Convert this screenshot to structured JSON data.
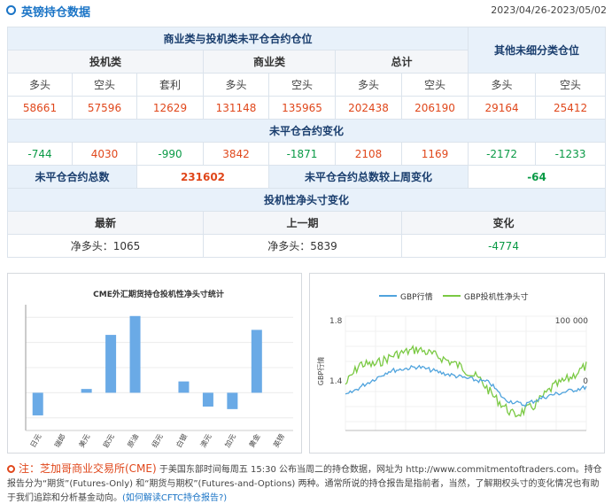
{
  "header": {
    "title": "英镑持仓数据",
    "date_range": "2023/04/26-2023/05/02"
  },
  "table": {
    "group_commercial": "商业类与投机类未平仓合约仓位",
    "group_other": "其他未细分类仓位",
    "sub_spec": "投机类",
    "sub_comm": "商业类",
    "sub_total": "总计",
    "cols": [
      "多头",
      "空头",
      "套利",
      "多头",
      "空头",
      "多头",
      "空头",
      "多头",
      "空头"
    ],
    "values": [
      "58661",
      "57596",
      "12629",
      "131148",
      "135965",
      "202438",
      "206190",
      "29164",
      "25412"
    ],
    "change_title": "未平仓合约变化",
    "changes": [
      "-744",
      "4030",
      "-990",
      "3842",
      "-1871",
      "2108",
      "1169",
      "-2172",
      "-1233"
    ],
    "oi_total_label": "未平仓合约总数",
    "oi_total": "231602",
    "oi_change_label": "未平仓合约总数较上周变化",
    "oi_change": "-64",
    "net_title": "投机性净头寸变化",
    "net_cols": [
      "最新",
      "上一期",
      "变化"
    ],
    "net_latest": "净多头：1065",
    "net_prev": "净多头：5839",
    "net_change": "-4774"
  },
  "chart_data": [
    {
      "type": "bar",
      "title": "CME外汇期货持仓投机性净头寸统计",
      "categories": [
        "日元",
        "瑞郎",
        "美元",
        "欧元",
        "原油",
        "纽元",
        "白银",
        "澳元",
        "加元",
        "黄金",
        "英镑"
      ],
      "values": [
        -0.9,
        0,
        0.15,
        2.3,
        3.05,
        0,
        0.45,
        -0.55,
        -0.65,
        2.5,
        0
      ],
      "ylim": [
        -1.5,
        3.5
      ],
      "bar_color": "#6aaae6"
    },
    {
      "type": "line",
      "series": [
        {
          "name": "GBP行情",
          "color": "#4fa3dd"
        },
        {
          "name": "GBP投机性净头寸",
          "color": "#7ac943"
        }
      ],
      "ylabel": "GBP行情",
      "left_ticks": [
        "1.8",
        "1.4"
      ],
      "right_ticks": [
        "100 000",
        "0"
      ]
    }
  ],
  "footer": {
    "lead": "注：芝加哥商业交易所(CME)",
    "text": "于美国东部时间每周五 15:30 公布当周二的持仓数据，网址为 http://www.commitmentoftraders.com。持仓报告分为“期货”(Futures-Only) 和“期货与期权”(Futures-and-Options) 两种。通常所说的持仓报告是指前者，当然，了解期权头寸的变化情况也有助于我们追踪和分析基金动向。",
    "link": "(如何解读CFTC持仓报告?)"
  }
}
